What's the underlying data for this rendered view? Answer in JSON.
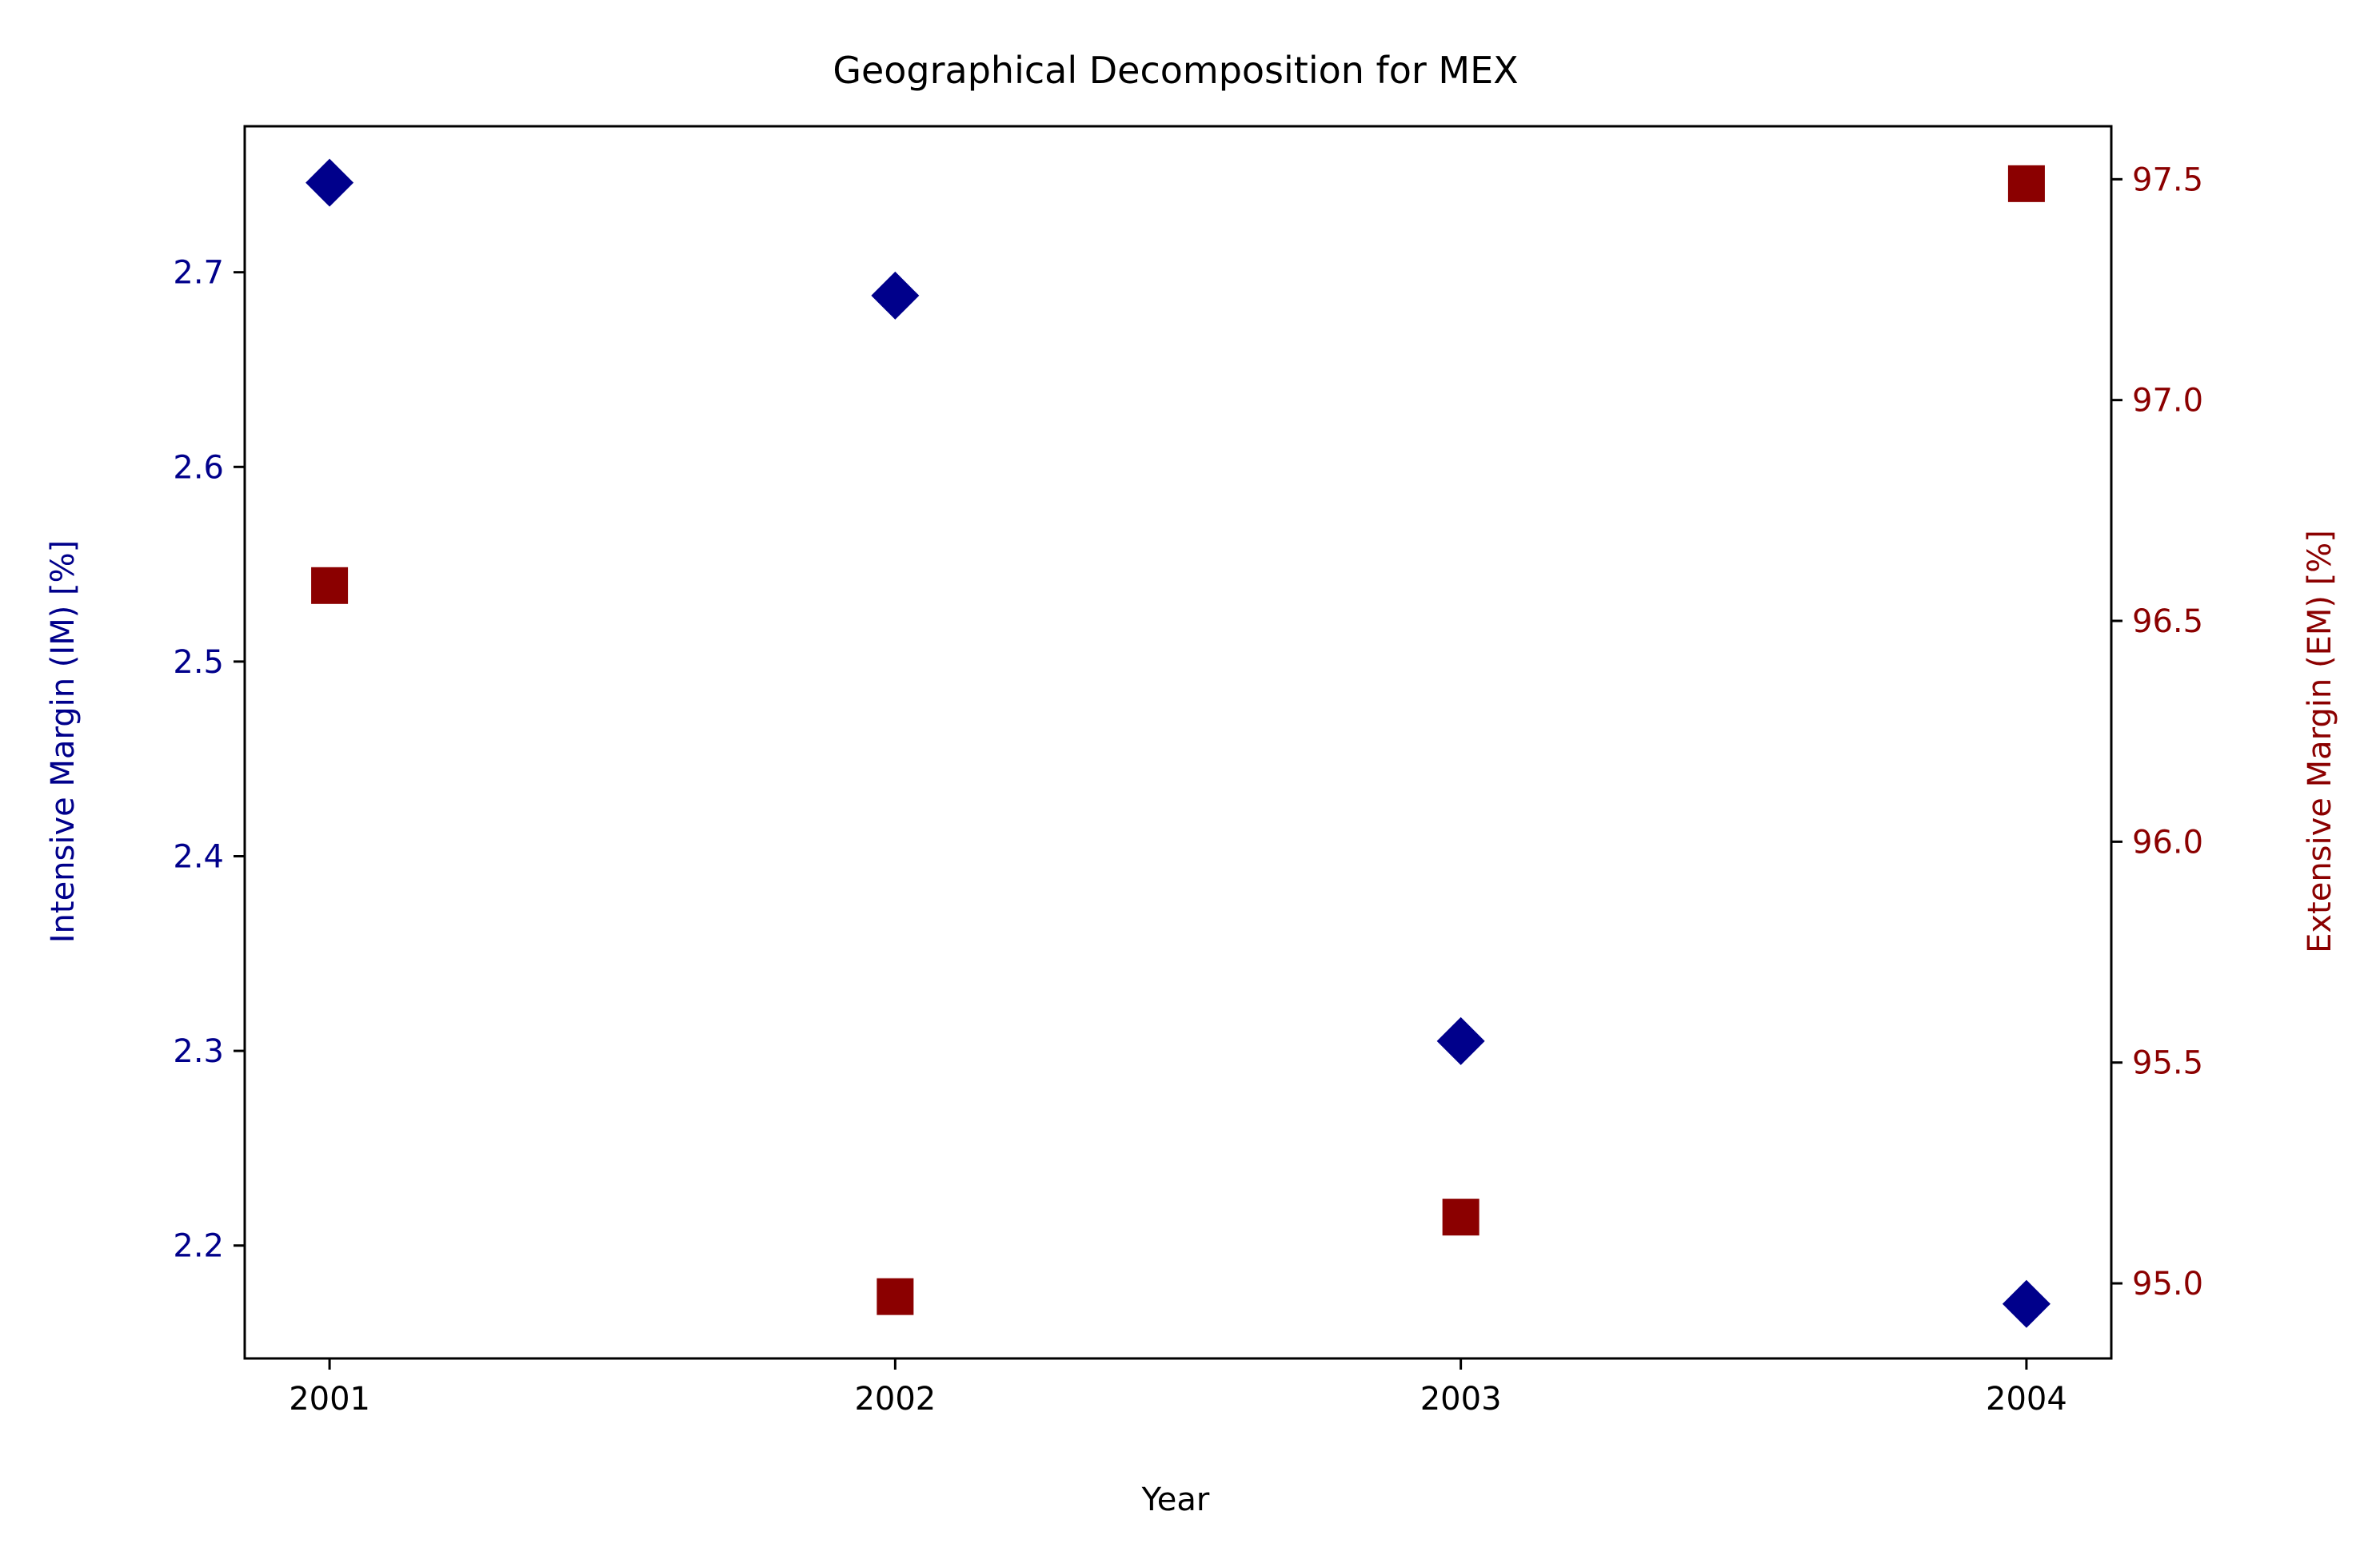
{
  "chart_data": {
    "type": "scatter",
    "title": "Geographical Decomposition for MEX",
    "xlabel": "Year",
    "ylabel": "Intensive Margin (IM) [%]",
    "y2label": "Extensive Margin (EM) [%]",
    "x": [
      2001,
      2002,
      2003,
      2004
    ],
    "x_ticks": [
      "2001",
      "2002",
      "2003",
      "2004"
    ],
    "xlim": [
      2000.85,
      2004.15
    ],
    "ylim": [
      2.142,
      2.775
    ],
    "y2lim": [
      94.83,
      97.62
    ],
    "y_ticks": [
      "2.2",
      "2.3",
      "2.4",
      "2.5",
      "2.6",
      "2.7"
    ],
    "y2_ticks": [
      "95.0",
      "95.5",
      "96.0",
      "96.5",
      "97.0",
      "97.5"
    ],
    "grid": false,
    "legend": "none",
    "series": [
      {
        "axis": "left",
        "marker": "diamond",
        "color": "#00008b",
        "values": [
          2.746,
          2.688,
          2.305,
          2.17
        ]
      },
      {
        "axis": "right",
        "marker": "square",
        "color": "#8b0000",
        "values": [
          96.58,
          94.97,
          95.15,
          97.49
        ]
      }
    ]
  }
}
